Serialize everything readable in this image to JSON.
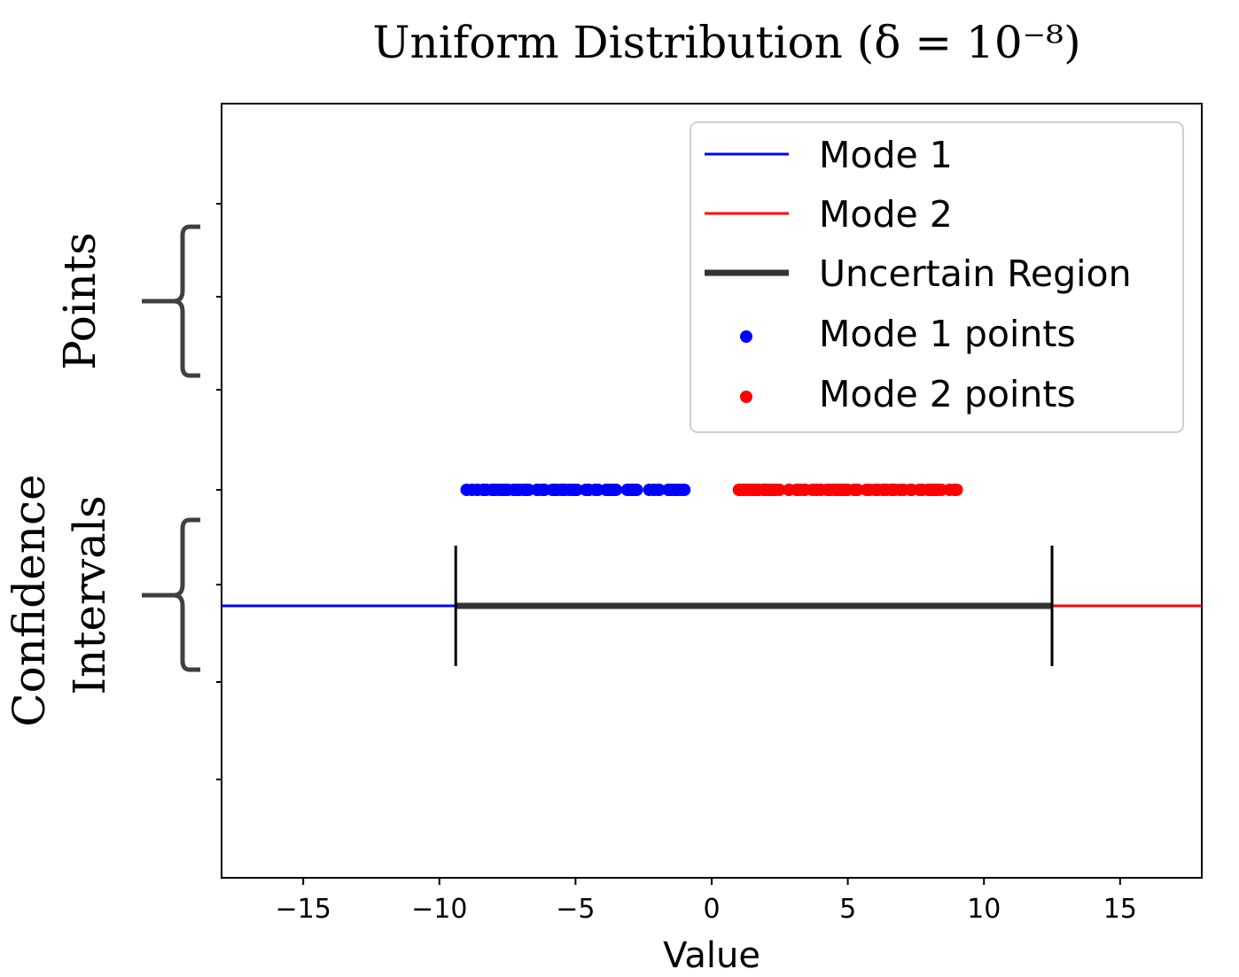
{
  "chart_data": {
    "type": "line",
    "title": "Uniform Distribution (δ = 10⁻⁸)",
    "xlabel": "Value",
    "ylabel": "",
    "xlim": [
      -18,
      18
    ],
    "xticks": [
      -15,
      -10,
      -5,
      0,
      5,
      10,
      15
    ],
    "xtick_labels": [
      "−15",
      "−10",
      "−5",
      "0",
      "5",
      "10",
      "15"
    ],
    "grid": false,
    "legend_position": "top-right",
    "group_labels": {
      "points": "Points",
      "confidence_line1": "Confidence",
      "confidence_line2": "Intervals"
    },
    "series": [
      {
        "name": "Mode 1",
        "kind": "interval",
        "color": "#0000ff",
        "x": [
          -18,
          -9.4
        ]
      },
      {
        "name": "Mode 2",
        "kind": "interval",
        "color": "#ff0000",
        "x": [
          12.5,
          18
        ]
      },
      {
        "name": "Uncertain Region",
        "kind": "interval",
        "color": "#333333",
        "x": [
          -9.4,
          12.5
        ]
      },
      {
        "name": "Mode 1 points",
        "kind": "points",
        "color": "#0000ff",
        "range": [
          -9,
          -1
        ]
      },
      {
        "name": "Mode 2 points",
        "kind": "points",
        "color": "#ff0000",
        "range": [
          1,
          9
        ]
      }
    ],
    "interval_bounds": [
      -9.4,
      12.5
    ]
  }
}
